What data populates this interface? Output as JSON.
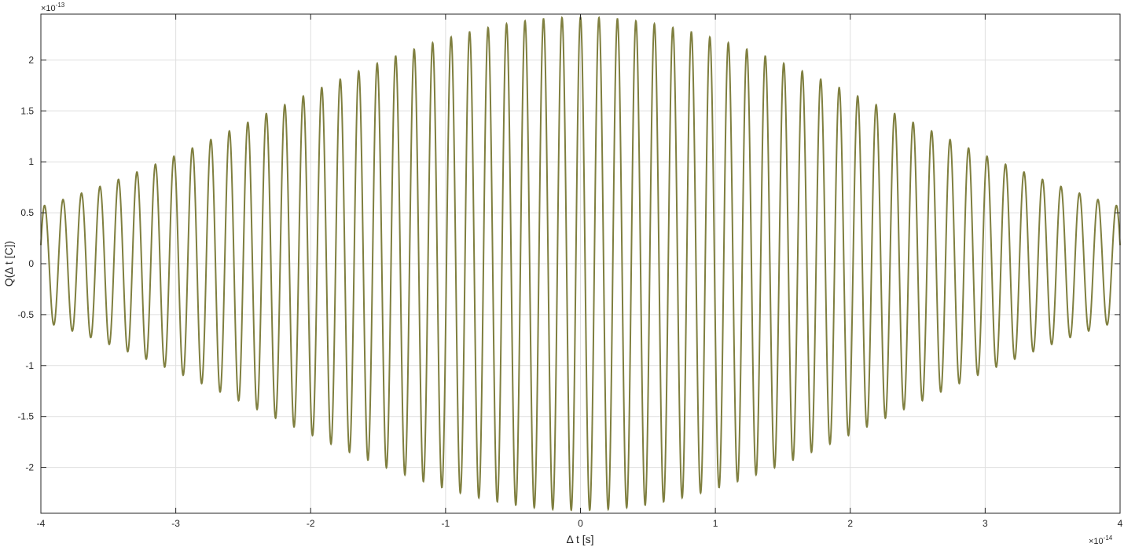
{
  "chart_data": {
    "type": "line",
    "title": "",
    "xlabel": "Δ t [s]",
    "ylabel": "Q(Δ t [C])",
    "x_exponent": {
      "base": "×10",
      "power": "-14"
    },
    "y_exponent": {
      "base": "×10",
      "power": "-13"
    },
    "xlim": [
      -4,
      4
    ],
    "ylim": [
      -2.45,
      2.45
    ],
    "x_ticks": [
      -4,
      -3,
      -2,
      -1,
      0,
      1,
      2,
      3,
      4
    ],
    "x_tick_labels": [
      "-4",
      "-3",
      "-2",
      "-1",
      "0",
      "1",
      "2",
      "3",
      "4"
    ],
    "y_ticks": [
      2,
      1.5,
      1,
      0.5,
      0,
      -0.5,
      -1,
      -1.5,
      -2
    ],
    "y_tick_labels": [
      "2",
      "1.5",
      "1",
      "0.5",
      "0",
      "-0.5",
      "-1",
      "-1.5",
      "-2"
    ],
    "grid": true,
    "series": [
      {
        "color": "#7f7f3f",
        "signal": {
          "form": "gaussian-modulated cosine",
          "center_amplitude": 2.42,
          "edge_amplitude": 0.56,
          "oscillation_period": 0.137,
          "unit_note": "x in units of 1e-14 s, y in units of 1e-13 C"
        },
        "envelope_samples": [
          {
            "x": -4,
            "y": 0.56
          },
          {
            "x": -3,
            "y": 0.85
          },
          {
            "x": -2,
            "y": 1.55
          },
          {
            "x": -1,
            "y": 2.1
          },
          {
            "x": 0,
            "y": 2.42
          },
          {
            "x": 1,
            "y": 2.1
          },
          {
            "x": 2,
            "y": 1.55
          },
          {
            "x": 3,
            "y": 0.85
          },
          {
            "x": 4,
            "y": 0.56
          }
        ]
      }
    ],
    "colors": {
      "line": "#7f7f3f",
      "grid": "#dfdfdf",
      "axis": "#262626"
    }
  }
}
